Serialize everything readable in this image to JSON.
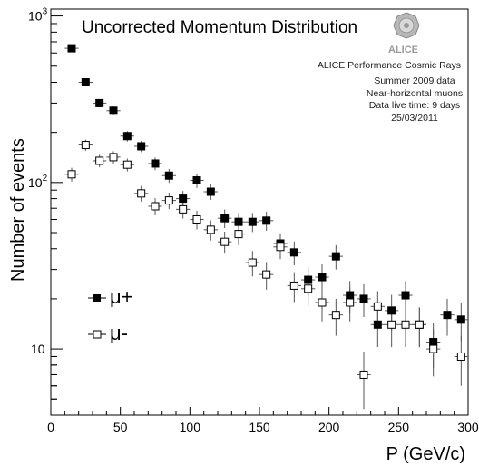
{
  "chart_data": {
    "type": "scatter",
    "title": "Uncorrected Momentum Distribution",
    "xlabel": "P (GeV/c)",
    "ylabel": "Number of events",
    "xlim": [
      0,
      300
    ],
    "ylim": [
      4,
      1100
    ],
    "yscale": "log",
    "grid": false,
    "legend_position": "bottom-left",
    "x_ticks": [
      "0",
      "50",
      "100",
      "150",
      "200",
      "250",
      "300"
    ],
    "y_ticks": [
      {
        "value": 10,
        "label": "10"
      },
      {
        "value": 100,
        "label": "10",
        "exp": "2"
      },
      {
        "value": 1000,
        "label": "10",
        "exp": "3"
      }
    ],
    "logo_label": "ALICE",
    "annotations": [
      "ALICE Performance Cosmic Rays",
      "Summer 2009  data",
      "Near-horizontal muons",
      "Data live time: 9 days",
      "25/03/2011"
    ],
    "series": [
      {
        "name": "μ+",
        "marker": "filled-square",
        "color": "#000000",
        "x": [
          15,
          25,
          35,
          45,
          55,
          65,
          75,
          85,
          95,
          105,
          115,
          125,
          135,
          145,
          155,
          165,
          175,
          185,
          195,
          205,
          215,
          225,
          235,
          245,
          255,
          265,
          275,
          285,
          295
        ],
        "y": [
          640,
          400,
          300,
          270,
          190,
          165,
          130,
          110,
          80,
          103,
          88,
          61,
          58,
          58,
          59,
          43,
          38,
          26,
          27,
          36,
          21,
          20,
          14,
          17,
          21,
          14,
          11,
          16,
          15
        ]
      },
      {
        "name": "μ-",
        "marker": "open-square",
        "color": "#000000",
        "x": [
          15,
          25,
          35,
          45,
          55,
          65,
          75,
          85,
          95,
          105,
          115,
          125,
          135,
          145,
          155,
          165,
          175,
          185,
          195,
          205,
          215,
          225,
          235,
          245,
          255,
          265,
          275,
          285,
          295
        ],
        "y": [
          112,
          168,
          135,
          142,
          128,
          86,
          72,
          78,
          69,
          60,
          52,
          44,
          49,
          33,
          28,
          41,
          24,
          23,
          19,
          16,
          19,
          7,
          18,
          14,
          14,
          14,
          10,
          null,
          9
        ]
      }
    ]
  }
}
